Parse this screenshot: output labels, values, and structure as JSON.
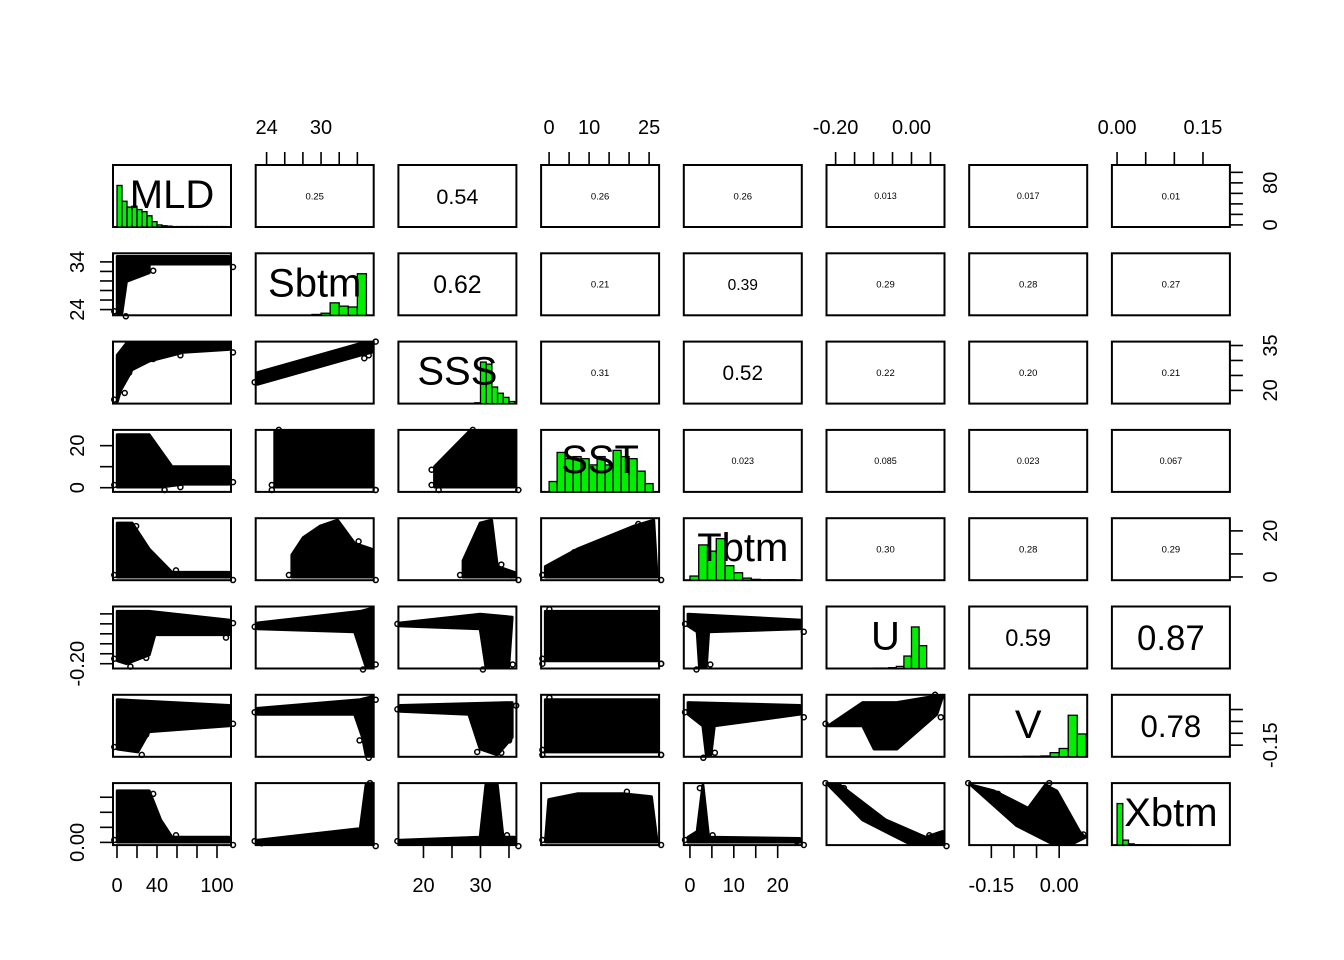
{
  "chart_data": {
    "type": "scatter",
    "title": "",
    "variables": [
      "MLD",
      "Sbtm",
      "SSS",
      "SST",
      "Tbtm",
      "U",
      "V",
      "Xbtm"
    ],
    "correlations": [
      [
        "MLD",
        "Sbtm",
        "0.25"
      ],
      [
        "MLD",
        "SSS",
        "0.54"
      ],
      [
        "MLD",
        "SST",
        "0.26"
      ],
      [
        "MLD",
        "Tbtm",
        "0.26"
      ],
      [
        "MLD",
        "U",
        "0.013"
      ],
      [
        "MLD",
        "V",
        "0.017"
      ],
      [
        "MLD",
        "Xbtm",
        "0.01"
      ],
      [
        "Sbtm",
        "SSS",
        "0.62"
      ],
      [
        "Sbtm",
        "SST",
        "0.21"
      ],
      [
        "Sbtm",
        "Tbtm",
        "0.39"
      ],
      [
        "Sbtm",
        "U",
        "0.29"
      ],
      [
        "Sbtm",
        "V",
        "0.28"
      ],
      [
        "Sbtm",
        "Xbtm",
        "0.27"
      ],
      [
        "SSS",
        "SST",
        "0.31"
      ],
      [
        "SSS",
        "Tbtm",
        "0.52"
      ],
      [
        "SSS",
        "U",
        "0.22"
      ],
      [
        "SSS",
        "V",
        "0.20"
      ],
      [
        "SSS",
        "Xbtm",
        "0.21"
      ],
      [
        "SST",
        "Tbtm",
        "0.023"
      ],
      [
        "SST",
        "U",
        "0.085"
      ],
      [
        "SST",
        "V",
        "0.023"
      ],
      [
        "SST",
        "Xbtm",
        "0.067"
      ],
      [
        "Tbtm",
        "U",
        "0.30"
      ],
      [
        "Tbtm",
        "V",
        "0.28"
      ],
      [
        "Tbtm",
        "Xbtm",
        "0.29"
      ],
      [
        "U",
        "V",
        "0.59"
      ],
      [
        "U",
        "Xbtm",
        "0.87"
      ],
      [
        "V",
        "Xbtm",
        "0.78"
      ]
    ],
    "ranges": {
      "MLD": [
        -4,
        114
      ],
      "Sbtm": [
        22.8,
        35.8
      ],
      "SSS": [
        15.6,
        36.3
      ],
      "SST": [
        -2,
        27.5
      ],
      "Tbtm": [
        -1.4,
        25.5
      ],
      "U": [
        -0.224,
        0.087
      ],
      "V": [
        -0.199,
        0.062
      ],
      "Xbtm": [
        -0.009,
        0.197
      ]
    },
    "axes": {
      "top": [
        {
          "var": "Sbtm",
          "ticks": [
            24,
            26,
            28,
            30,
            32,
            34
          ],
          "labels": [
            [
              24,
              "24"
            ],
            [
              30,
              "30"
            ]
          ]
        },
        {
          "var": "SST",
          "ticks": [
            0,
            5,
            10,
            15,
            20,
            25
          ],
          "labels": [
            [
              0,
              "0"
            ],
            [
              10,
              "10"
            ],
            [
              25,
              "25"
            ]
          ]
        },
        {
          "var": "U",
          "ticks": [
            -0.2,
            -0.15,
            -0.1,
            -0.05,
            0,
            0.05
          ],
          "labels": [
            [
              -0.2,
              "-0.20"
            ],
            [
              0,
              "0.00"
            ]
          ]
        },
        {
          "var": "Xbtm",
          "ticks": [
            0,
            0.05,
            0.1,
            0.15
          ],
          "labels": [
            [
              0,
              "0.00"
            ],
            [
              0.15,
              "0.15"
            ]
          ]
        }
      ],
      "bottom": [
        {
          "var": "MLD",
          "ticks": [
            0,
            20,
            40,
            60,
            80,
            100
          ],
          "labels": [
            [
              0,
              "0"
            ],
            [
              40,
              "40"
            ],
            [
              100,
              "100"
            ]
          ]
        },
        {
          "var": "SSS",
          "ticks": [
            20,
            25,
            30,
            35
          ],
          "labels": [
            [
              20,
              "20"
            ],
            [
              30,
              "30"
            ]
          ]
        },
        {
          "var": "Tbtm",
          "ticks": [
            0,
            5,
            10,
            15,
            20
          ],
          "labels": [
            [
              0,
              "0"
            ],
            [
              10,
              "10"
            ],
            [
              20,
              "20"
            ]
          ]
        },
        {
          "var": "V",
          "ticks": [
            -0.15,
            -0.1,
            -0.05,
            0
          ],
          "labels": [
            [
              -0.15,
              "-0.15"
            ],
            [
              0,
              "0.00"
            ]
          ]
        }
      ],
      "left": [
        {
          "var": "Sbtm",
          "ticks": [
            24,
            26,
            28,
            30,
            32,
            34
          ],
          "labels": [
            [
              24,
              "24"
            ],
            [
              34,
              "34"
            ]
          ]
        },
        {
          "var": "SST",
          "ticks": [
            0,
            10,
            20
          ],
          "labels": [
            [
              0,
              "0"
            ],
            [
              20,
              "20"
            ]
          ]
        },
        {
          "var": "U",
          "ticks": [
            -0.2,
            -0.15,
            -0.1,
            -0.05,
            0,
            0.05
          ],
          "labels": [
            [
              -0.2,
              "-0.20"
            ]
          ]
        },
        {
          "var": "Xbtm",
          "ticks": [
            0,
            0.05,
            0.1,
            0.15
          ],
          "labels": [
            [
              0,
              "0.00"
            ]
          ]
        }
      ],
      "right": [
        {
          "var": "MLD",
          "ticks": [
            0,
            20,
            40,
            60,
            80,
            100
          ],
          "labels": [
            [
              0,
              "0"
            ],
            [
              80,
              "80"
            ]
          ]
        },
        {
          "var": "SSS",
          "ticks": [
            20,
            25,
            30,
            35
          ],
          "labels": [
            [
              20,
              "20"
            ],
            [
              35,
              "35"
            ]
          ]
        },
        {
          "var": "Tbtm",
          "ticks": [
            0,
            10,
            20
          ],
          "labels": [
            [
              0,
              "0"
            ],
            [
              20,
              "20"
            ]
          ]
        },
        {
          "var": "V",
          "ticks": [
            -0.15,
            -0.1,
            -0.05,
            0
          ],
          "labels": [
            [
              -0.15,
              "-0.15"
            ]
          ]
        }
      ]
    },
    "histograms": {
      "MLD": {
        "start": 0,
        "width": 5,
        "counts": [
          1.0,
          0.62,
          0.48,
          0.5,
          0.42,
          0.37,
          0.27,
          0.13,
          0.05,
          0.03,
          0.02,
          0.01,
          0.01,
          0.01,
          0.01,
          0.01,
          0.01,
          0.01,
          0.01,
          0.01,
          0.01,
          0.01
        ]
      },
      "Sbtm": {
        "start": 29,
        "width": 1,
        "counts": [
          0.02,
          0.05,
          0.3,
          0.22,
          0.2,
          1.0
        ]
      },
      "SSS": {
        "start": 29,
        "width": 1,
        "counts": [
          0.02,
          1.0,
          0.95,
          0.4,
          0.25,
          0.15,
          0.05
        ]
      },
      "SST": {
        "start": 0,
        "width": 2,
        "counts": [
          0.25,
          0.95,
          0.8,
          0.85,
          0.8,
          0.65,
          0.85,
          0.65,
          1.0,
          0.85,
          0.8,
          0.5,
          0.2
        ]
      },
      "Tbtm": {
        "start": 0,
        "width": 2,
        "counts": [
          0.1,
          0.85,
          0.7,
          1.0,
          0.35,
          0.18,
          0.05,
          0.02,
          0.01,
          0.01,
          0.01,
          0.01
        ]
      },
      "U": {
        "start": -0.22,
        "width": 0.02,
        "counts": [
          0,
          0,
          0,
          0,
          0.005,
          0.005,
          0.01,
          0.01,
          0.02,
          0.05,
          0.3,
          1.0,
          0.55,
          0
        ]
      },
      "V": {
        "start": -0.2,
        "width": 0.02,
        "counts": [
          0,
          0,
          0,
          0,
          0.005,
          0.005,
          0.01,
          0.01,
          0.02,
          0.1,
          0.2,
          1.0,
          0.55
        ]
      },
      "Xbtm": {
        "start": 0,
        "width": 0.01,
        "counts": [
          1.0,
          0.12,
          0.03,
          0.01,
          0.005,
          0.005,
          0.003,
          0.003,
          0.002,
          0.002,
          0.001,
          0.001
        ]
      }
    },
    "colors": {
      "histogram_fill": "#00ee00",
      "points": "#000000"
    }
  }
}
